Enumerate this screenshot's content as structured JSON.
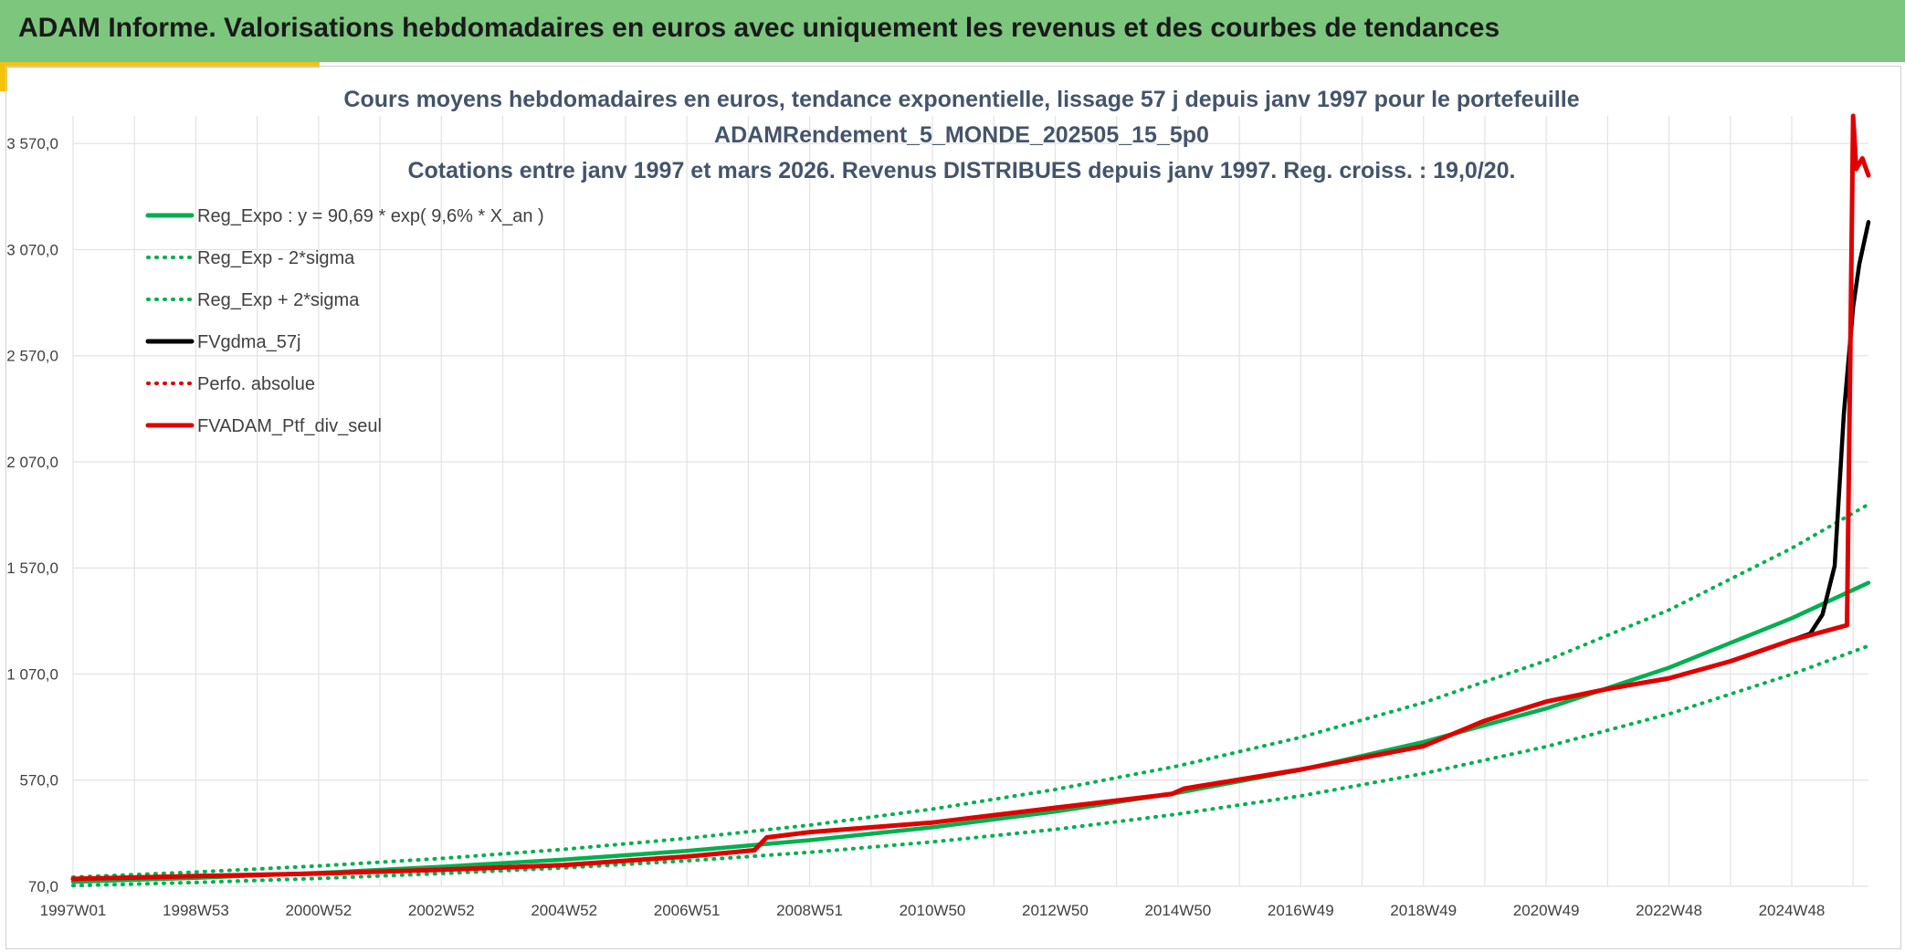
{
  "banner": {
    "title": "ADAM Informe. Valorisations hebdomadaires en euros avec uniquement les revenus et des courbes de tendances"
  },
  "colors": {
    "banner": "#7dc67e",
    "accent_gold": "#f4c20d",
    "reg_green": "#00b050",
    "black": "#000000",
    "red": "#e00000"
  },
  "chart_data": {
    "type": "line",
    "title": [
      "Cours moyens hebdomadaires en euros, tendance exponentielle, lissage 57 j depuis janv 1997 pour le portefeuille",
      "ADAMRendement_5_MONDE_202505_15_5p0",
      "Cotations entre janv 1997 et mars 2026. Revenus DISTRIBUES depuis janv 1997. Reg. croiss. : 19,0/20."
    ],
    "x_range": [
      1997.0,
      2026.25
    ],
    "y_range": [
      70,
      3700
    ],
    "x_ticks": [
      {
        "label": "1997W01",
        "x": 1997.0
      },
      {
        "label": "1998W53",
        "x": 1999.0
      },
      {
        "label": "2000W52",
        "x": 2001.0
      },
      {
        "label": "2002W52",
        "x": 2003.0
      },
      {
        "label": "2004W52",
        "x": 2005.0
      },
      {
        "label": "2006W51",
        "x": 2007.0
      },
      {
        "label": "2008W51",
        "x": 2009.0
      },
      {
        "label": "2010W50",
        "x": 2011.0
      },
      {
        "label": "2012W50",
        "x": 2013.0
      },
      {
        "label": "2014W50",
        "x": 2015.0
      },
      {
        "label": "2016W49",
        "x": 2017.0
      },
      {
        "label": "2018W49",
        "x": 2019.0
      },
      {
        "label": "2020W49",
        "x": 2021.0
      },
      {
        "label": "2022W48",
        "x": 2023.0
      },
      {
        "label": "2024W48",
        "x": 2025.0
      }
    ],
    "y_ticks": [
      {
        "label": "70,0",
        "y": 70
      },
      {
        "label": "570,0",
        "y": 570
      },
      {
        "label": "1 070,0",
        "y": 1070
      },
      {
        "label": "1 570,0",
        "y": 1570
      },
      {
        "label": "2 070,0",
        "y": 2070
      },
      {
        "label": "2 570,0",
        "y": 2570
      },
      {
        "label": "3 070,0",
        "y": 3070
      },
      {
        "label": "3 570,0",
        "y": 3570
      }
    ],
    "grid": true,
    "legend_position": "top-left",
    "series": [
      {
        "name": "Reg_Expo : y = 90,69 * exp( 9,6% *  X_an )",
        "color": "#00b050",
        "style": "solid",
        "x": [
          1997.0,
          1999.0,
          2001.0,
          2003.0,
          2005.0,
          2007.0,
          2009.0,
          2011.0,
          2013.0,
          2015.0,
          2017.0,
          2019.0,
          2021.0,
          2023.0,
          2025.0,
          2026.25
        ],
        "y": [
          91,
          110,
          133,
          162,
          196,
          237,
          287,
          348,
          422,
          511,
          619,
          750,
          908,
          1100,
          1333,
          1500
        ]
      },
      {
        "name": "Reg_Exp - 2*sigma",
        "color": "#00b050",
        "style": "dotted",
        "x": [
          1997.0,
          1999.0,
          2001.0,
          2003.0,
          2005.0,
          2007.0,
          2009.0,
          2011.0,
          2013.0,
          2015.0,
          2017.0,
          2019.0,
          2021.0,
          2023.0,
          2025.0,
          2026.25
        ],
        "y": [
          73,
          88,
          107,
          130,
          157,
          190,
          230,
          279,
          338,
          410,
          496,
          601,
          728,
          882,
          1069,
          1203
        ]
      },
      {
        "name": "Reg_Exp + 2*sigma",
        "color": "#00b050",
        "style": "dotted",
        "x": [
          1997.0,
          1999.0,
          2001.0,
          2003.0,
          2005.0,
          2007.0,
          2009.0,
          2011.0,
          2013.0,
          2015.0,
          2017.0,
          2019.0,
          2021.0,
          2023.0,
          2025.0,
          2026.25
        ],
        "y": [
          113,
          137,
          166,
          201,
          244,
          296,
          358,
          434,
          526,
          637,
          772,
          935,
          1133,
          1372,
          1663,
          1870
        ]
      },
      {
        "name": "FVgdma_57j",
        "color": "#000000",
        "style": "solid",
        "x": [
          1997.0,
          1999.0,
          2001.0,
          2003.0,
          2005.0,
          2007.0,
          2008.1,
          2008.3,
          2009.0,
          2011.0,
          2013.0,
          2014.9,
          2015.1,
          2017.0,
          2019.0,
          2020.0,
          2021.0,
          2022.0,
          2023.0,
          2024.0,
          2025.0,
          2025.3,
          2025.5,
          2025.7,
          2025.85,
          2026.0,
          2026.1,
          2026.25
        ],
        "y": [
          105,
          118,
          130,
          148,
          170,
          210,
          240,
          300,
          325,
          370,
          440,
          505,
          530,
          620,
          730,
          850,
          940,
          1000,
          1050,
          1130,
          1230,
          1260,
          1350,
          1580,
          2300,
          2800,
          3000,
          3200
        ]
      },
      {
        "name": "Perfo. absolue",
        "color": "#e00000",
        "style": "dotted",
        "x": [
          1997.0,
          1999.0,
          2001.0,
          2003.0,
          2005.0,
          2007.0,
          2008.1,
          2008.3,
          2009.0,
          2011.0,
          2013.0,
          2014.9,
          2015.1,
          2017.0,
          2019.0,
          2020.0,
          2021.0,
          2022.0,
          2023.0,
          2024.0,
          2025.0,
          2025.9,
          2026.0,
          2026.05,
          2026.15,
          2026.25
        ],
        "y": [
          105,
          118,
          130,
          148,
          170,
          210,
          240,
          300,
          325,
          370,
          440,
          505,
          530,
          620,
          730,
          850,
          940,
          1000,
          1050,
          1130,
          1230,
          1300,
          3700,
          3450,
          3500,
          3420
        ]
      },
      {
        "name": "FVADAM_Ptf_div_seul",
        "color": "#e00000",
        "style": "solid",
        "x": [
          1997.0,
          1999.0,
          2001.0,
          2003.0,
          2005.0,
          2007.0,
          2008.1,
          2008.3,
          2009.0,
          2011.0,
          2013.0,
          2014.9,
          2015.1,
          2017.0,
          2019.0,
          2020.0,
          2021.0,
          2022.0,
          2023.0,
          2024.0,
          2025.0,
          2025.9,
          2026.0,
          2026.05,
          2026.15,
          2026.25
        ],
        "y": [
          105,
          118,
          130,
          148,
          170,
          210,
          240,
          300,
          325,
          370,
          440,
          505,
          530,
          620,
          730,
          850,
          940,
          1000,
          1050,
          1130,
          1230,
          1300,
          3700,
          3450,
          3500,
          3420
        ]
      }
    ]
  }
}
